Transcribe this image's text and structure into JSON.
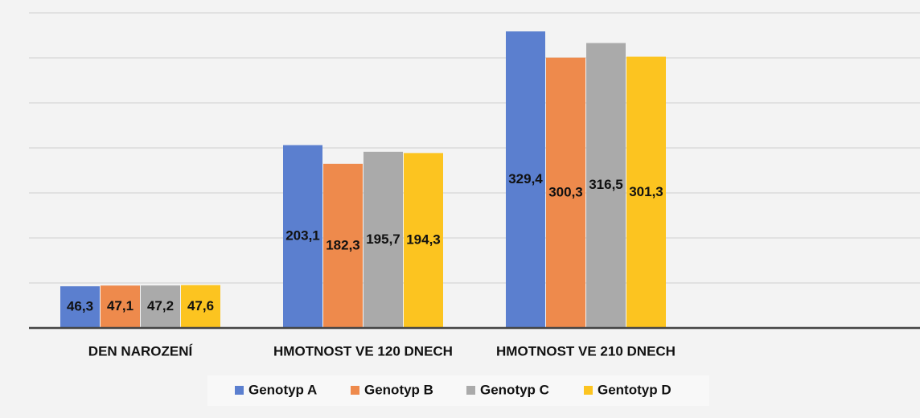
{
  "chart_data": {
    "type": "bar",
    "categories": [
      "DEN NAROZENÍ",
      "HMOTNOST VE 120 DNECH",
      "HMOTNOST VE 210 DNECH",
      null
    ],
    "series": [
      {
        "name": "Genotyp A",
        "color": "#5b7fcf",
        "values": [
          46.3,
          203.1,
          329.4,
          null
        ],
        "value_labels": [
          "46,3",
          "203,1",
          "329,4",
          null
        ]
      },
      {
        "name": "Genotyp B",
        "color": "#ee8a4c",
        "values": [
          47.1,
          182.3,
          300.3,
          null
        ],
        "value_labels": [
          "47,1",
          "182,3",
          "300,3",
          null
        ]
      },
      {
        "name": "Genotyp C",
        "color": "#aaaaaa",
        "values": [
          47.2,
          195.7,
          316.5,
          null
        ],
        "value_labels": [
          "47,2",
          "195,7",
          "316,5",
          null
        ]
      },
      {
        "name": "Gentotyp D",
        "color": "#fcc420",
        "values": [
          47.6,
          194.3,
          301.3,
          null
        ],
        "value_labels": [
          "47,6",
          "194,3",
          "301,3",
          null
        ]
      }
    ],
    "ylim": [
      0,
      350
    ],
    "yticks": [
      0,
      50,
      100,
      150,
      200,
      250,
      300,
      350
    ],
    "grid": true,
    "legend": "bottom"
  }
}
